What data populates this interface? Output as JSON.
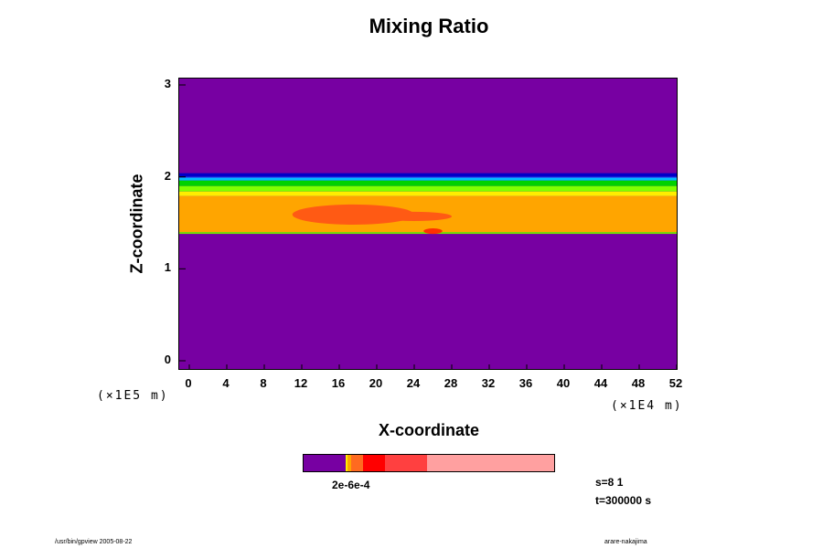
{
  "chart_data": {
    "type": "heatmap",
    "title": "Mixing Ratio",
    "xlabel": "X-coordinate",
    "ylabel": "Z-coordinate",
    "x_unit": "(×1E4 m)",
    "y_unit": "(×1E5 m)",
    "x_ticks": [
      "0",
      "4",
      "8",
      "12",
      "16",
      "20",
      "24",
      "28",
      "32",
      "36",
      "40",
      "44",
      "48",
      "52"
    ],
    "y_ticks": [
      "0",
      "1",
      "2",
      "3"
    ],
    "xlim": [
      0,
      52
    ],
    "ylim": [
      0,
      3
    ],
    "background_color": "#7700a2",
    "layers": [
      {
        "name": "upper-edge-dark-blue",
        "z": [
          2.0,
          2.04
        ],
        "color": "#0000c8"
      },
      {
        "name": "blue",
        "z": [
          1.99,
          2.0
        ],
        "color": "#1a5aff"
      },
      {
        "name": "cyan",
        "z": [
          1.96,
          1.99
        ],
        "color": "#00bfff"
      },
      {
        "name": "green",
        "z": [
          1.9,
          1.96
        ],
        "color": "#00d200"
      },
      {
        "name": "light-green",
        "z": [
          1.84,
          1.9
        ],
        "color": "#80ff00"
      },
      {
        "name": "yellow",
        "z": [
          1.79,
          1.84
        ],
        "color": "#ffee00"
      },
      {
        "name": "orange",
        "z": [
          1.4,
          1.79
        ],
        "color": "#ffa500"
      },
      {
        "name": "lower-edge",
        "z": [
          1.38,
          1.4
        ],
        "color": "#77e400"
      }
    ],
    "patches": [
      {
        "x": [
          11,
          24
        ],
        "z": [
          1.48,
          1.7
        ],
        "color": "#ff5a14"
      },
      {
        "x": [
          25,
          27
        ],
        "z": [
          1.38,
          1.44
        ],
        "color": "#ff3000"
      },
      {
        "x": [
          20,
          28
        ],
        "z": [
          1.52,
          1.62
        ],
        "color": "#ff5a14"
      }
    ],
    "colorbar": {
      "segments": [
        {
          "color": "#7700a2",
          "weight": 46
        },
        {
          "color": "#ffee00",
          "weight": 2
        },
        {
          "color": "#ffa500",
          "weight": 4
        },
        {
          "color": "#ff6a20",
          "weight": 13
        },
        {
          "color": "#ff0000",
          "weight": 24
        },
        {
          "color": "#ff4040",
          "weight": 46
        },
        {
          "color": "#ffa0a0",
          "weight": 139
        }
      ],
      "label": "2e-6e-4"
    },
    "info": {
      "s": "s=8 1",
      "t": "t=300000 s"
    }
  },
  "footer": {
    "left": "/usr/bin/gpview 2005-08-22",
    "right": "arare-nakajima"
  }
}
